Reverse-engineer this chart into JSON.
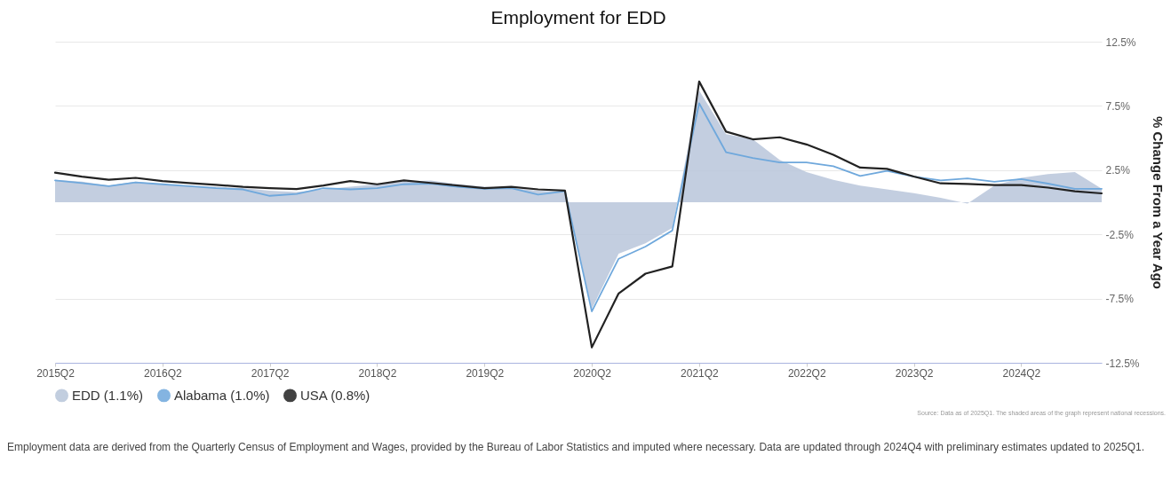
{
  "chart_data": {
    "type": "line",
    "title": "Employment for EDD",
    "ylabel": "% Change From a Year Ago",
    "categories": [
      "2015Q2",
      null,
      null,
      null,
      "2016Q2",
      null,
      null,
      null,
      "2017Q2",
      null,
      null,
      null,
      "2018Q2",
      null,
      null,
      null,
      "2019Q2",
      null,
      null,
      null,
      "2020Q2",
      null,
      null,
      null,
      "2021Q2",
      null,
      null,
      null,
      "2022Q2",
      null,
      null,
      null,
      "2023Q2",
      null,
      null,
      null,
      "2024Q2",
      null,
      null,
      null
    ],
    "series": [
      {
        "name": "EDD (1.1%)",
        "type": "area",
        "color": "#b8c6da",
        "values": [
          1.75,
          1.6,
          1.3,
          1.6,
          1.4,
          1.3,
          1.2,
          1.1,
          0.9,
          0.8,
          1.0,
          1.2,
          1.4,
          1.6,
          1.7,
          1.4,
          1.2,
          1.1,
          0.9,
          0.8,
          -8.3,
          -4.0,
          -3.2,
          -2.0,
          8.7,
          5.3,
          4.9,
          3.3,
          2.35,
          1.75,
          1.3,
          1.0,
          0.7,
          0.35,
          -0.1,
          1.3,
          1.9,
          2.2,
          2.35,
          1.05
        ]
      },
      {
        "name": "Alabama (1.0%)",
        "type": "line",
        "color": "#6fa8dc",
        "values": [
          1.7,
          1.5,
          1.25,
          1.55,
          1.4,
          1.25,
          1.1,
          1.0,
          0.5,
          0.65,
          1.1,
          1.0,
          1.1,
          1.4,
          1.45,
          1.2,
          1.05,
          1.1,
          0.6,
          0.85,
          -8.5,
          -4.4,
          -3.45,
          -2.2,
          7.7,
          3.9,
          3.45,
          3.1,
          3.1,
          2.8,
          2.05,
          2.45,
          2.0,
          1.7,
          1.85,
          1.6,
          1.8,
          1.45,
          1.05,
          1.05
        ]
      },
      {
        "name": "USA (0.8%)",
        "type": "line",
        "color": "#222222",
        "values": [
          2.3,
          2.0,
          1.75,
          1.9,
          1.65,
          1.5,
          1.35,
          1.2,
          1.1,
          1.03,
          1.3,
          1.65,
          1.4,
          1.7,
          1.5,
          1.3,
          1.1,
          1.2,
          1.0,
          0.9,
          -11.3,
          -7.1,
          -5.56,
          -5.0,
          9.4,
          5.5,
          4.9,
          5.06,
          4.5,
          3.7,
          2.7,
          2.6,
          2.0,
          1.47,
          1.42,
          1.34,
          1.34,
          1.14,
          0.86,
          0.69
        ]
      }
    ],
    "ylim": [
      -12.5,
      12.5
    ],
    "yticks": [
      {
        "value": 12.5,
        "label": "12.5%"
      },
      {
        "value": 7.5,
        "label": "7.5%"
      },
      {
        "value": 2.5,
        "label": "2.5%"
      },
      {
        "value": -2.5,
        "label": "-2.5%"
      },
      {
        "value": -7.5,
        "label": "-7.5%"
      },
      {
        "value": -12.5,
        "label": "-12.5%"
      }
    ],
    "grid": "y",
    "legend": "bottom",
    "annotations": [
      "Source: Data as of 2025Q1. The shaded areas of the graph represent national recessions.",
      "Employment data are derived from the Quarterly Census of Employment and Wages, provided by the Bureau of Labor Statistics and imputed where necessary. Data are updated through 2024Q4 with preliminary estimates updated to 2025Q1."
    ]
  }
}
